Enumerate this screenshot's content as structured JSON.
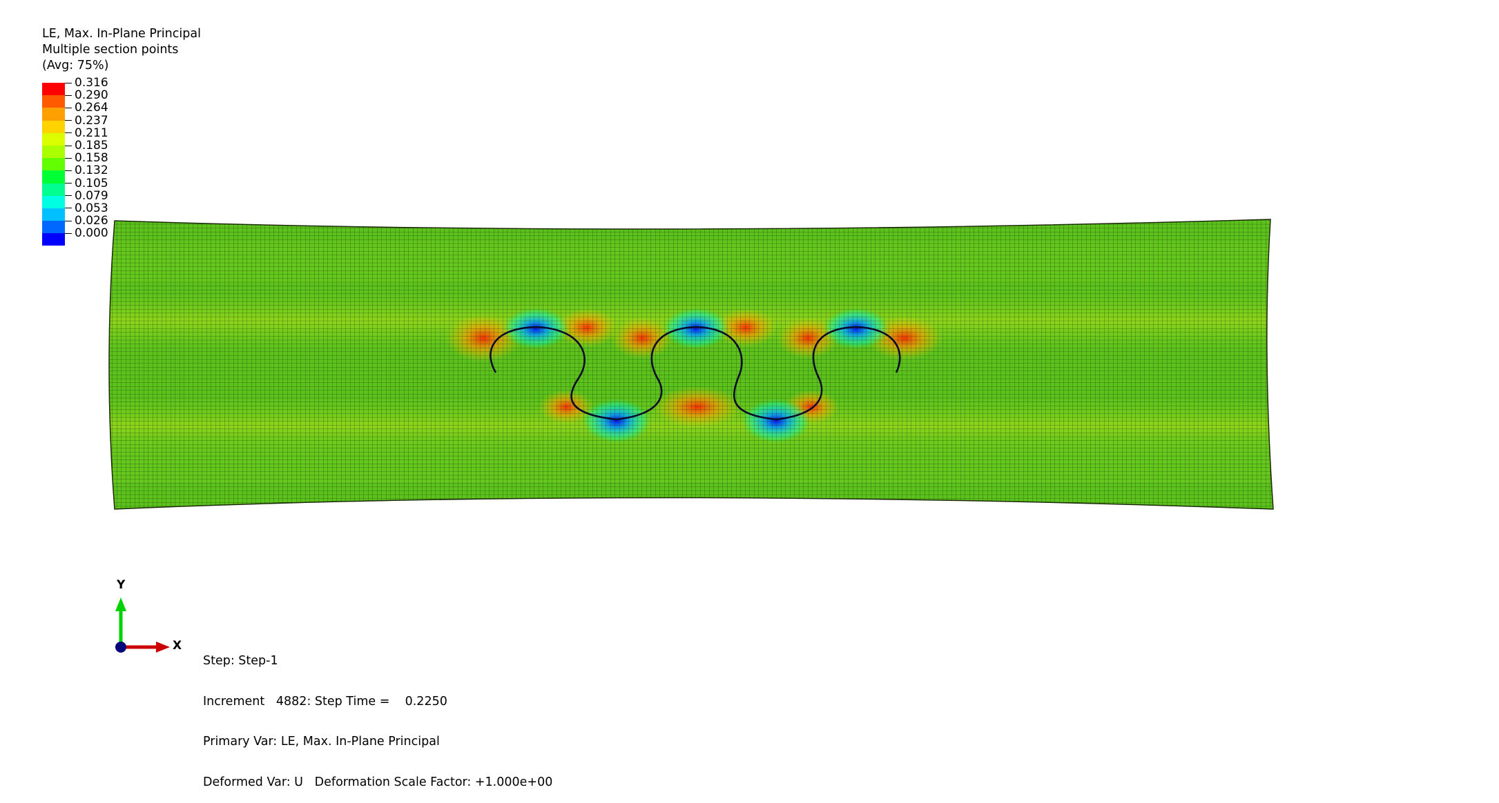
{
  "legend": {
    "variable": "LE, Max. In-Plane Principal",
    "section_points": "Multiple section points",
    "averaging": "(Avg: 75%)",
    "ticks": [
      "0.316",
      "0.290",
      "0.264",
      "0.237",
      "0.211",
      "0.185",
      "0.158",
      "0.132",
      "0.105",
      "0.079",
      "0.053",
      "0.026",
      "0.000"
    ],
    "colors": [
      "#ff0000",
      "#ff5a00",
      "#ffa000",
      "#ffd200",
      "#dcff00",
      "#aaff00",
      "#63ff00",
      "#00ff35",
      "#00ff90",
      "#00ffe2",
      "#00c0ff",
      "#0068ff",
      "#0000ff"
    ]
  },
  "model": {
    "fill": "#5cc31c",
    "mesh": "#1b2a08",
    "hot": "#ff2a00",
    "cool": "#0033ff"
  },
  "triad": {
    "y_label": "Y",
    "x_label": "X",
    "y_color": "#00d200",
    "x_color": "#cc0000",
    "origin_color": "#00007a"
  },
  "info": {
    "step": "Step: Step-1",
    "increment": "Increment   4882: Step Time =    0.2250",
    "primary_var": "Primary Var: LE, Max. In-Plane Principal",
    "deformed_var": "Deformed Var: U   Deformation Scale Factor: +1.000e+00"
  }
}
